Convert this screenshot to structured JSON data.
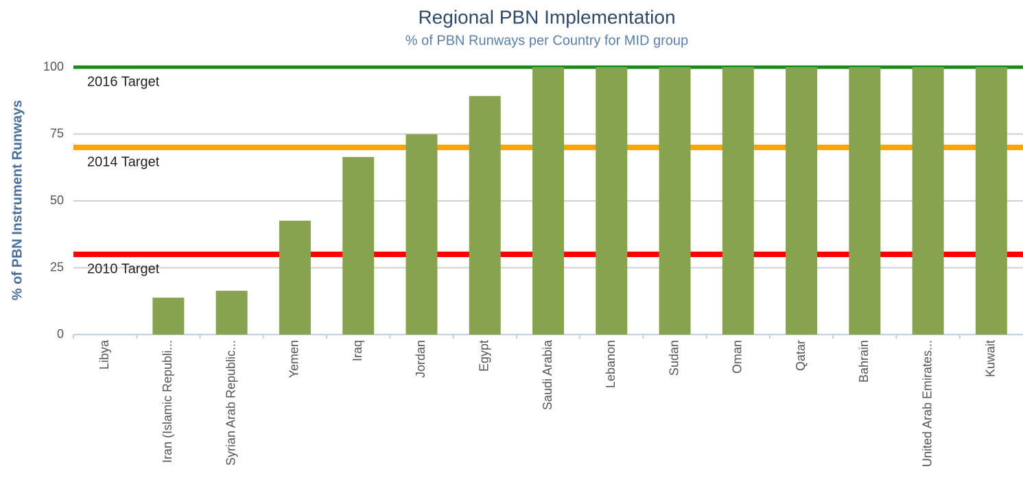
{
  "chart_data": {
    "type": "bar",
    "title": "Regional PBN Implementation",
    "subtitle": "% of PBN Runways per Country for MID group",
    "y_label": "% of PBN Instrument Runways",
    "categories": [
      "Libya",
      "Iran (Islamic Republi...",
      "Syrian Arab Republic...",
      "Yemen",
      "Iraq",
      "Jordan",
      "Egypt",
      "Saudi Arabia",
      "Lebanon",
      "Sudan",
      "Oman",
      "Qatar",
      "Bahrain",
      "United Arab Emirates...",
      "Kuwait"
    ],
    "values": [
      0,
      13.8,
      16.4,
      42.6,
      66.4,
      74.9,
      89.2,
      100,
      100,
      100,
      100,
      100,
      100,
      100,
      100
    ],
    "color": "#88a34e",
    "ylim": [
      0,
      100
    ],
    "yticks": [
      0,
      25,
      50,
      75,
      100
    ],
    "grid": true,
    "targets": [
      {
        "label": "2016 Target",
        "value": 100,
        "color": "#1a8a1a"
      },
      {
        "label": "2014 Target",
        "value": 70,
        "color": "#ffa500"
      },
      {
        "label": "2010 Target",
        "value": 30,
        "color": "#ff0000"
      }
    ]
  }
}
